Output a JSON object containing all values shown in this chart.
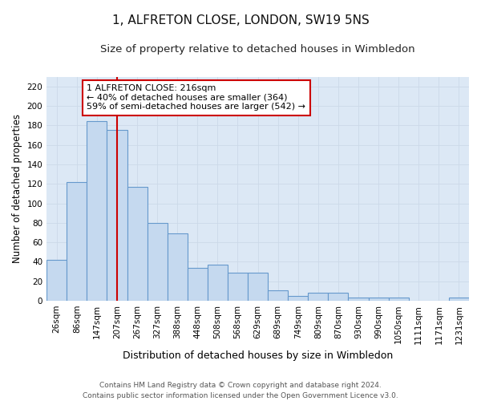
{
  "title": "1, ALFRETON CLOSE, LONDON, SW19 5NS",
  "subtitle": "Size of property relative to detached houses in Wimbledon",
  "xlabel": "Distribution of detached houses by size in Wimbledon",
  "ylabel": "Number of detached properties",
  "bar_labels": [
    "26sqm",
    "86sqm",
    "147sqm",
    "207sqm",
    "267sqm",
    "327sqm",
    "388sqm",
    "448sqm",
    "508sqm",
    "568sqm",
    "629sqm",
    "689sqm",
    "749sqm",
    "809sqm",
    "870sqm",
    "930sqm",
    "990sqm",
    "1050sqm",
    "1111sqm",
    "1171sqm",
    "1231sqm"
  ],
  "bar_values": [
    42,
    122,
    184,
    175,
    117,
    80,
    69,
    34,
    37,
    29,
    29,
    11,
    5,
    8,
    8,
    3,
    3,
    3,
    0,
    0,
    3
  ],
  "bar_color": "#c5d9ef",
  "bar_edge_color": "#6699cc",
  "vline_x": 3.0,
  "vline_color": "#cc0000",
  "annotation_text": "1 ALFRETON CLOSE: 216sqm\n← 40% of detached houses are smaller (364)\n59% of semi-detached houses are larger (542) →",
  "annotation_box_color": "#ffffff",
  "annotation_box_edge": "#cc0000",
  "grid_color": "#ccd9e8",
  "background_color": "#dce8f5",
  "footer_text": "Contains HM Land Registry data © Crown copyright and database right 2024.\nContains public sector information licensed under the Open Government Licence v3.0.",
  "ylim": [
    0,
    230
  ],
  "yticks": [
    0,
    20,
    40,
    60,
    80,
    100,
    120,
    140,
    160,
    180,
    200,
    220
  ],
  "title_fontsize": 11,
  "subtitle_fontsize": 9.5,
  "xlabel_fontsize": 9,
  "ylabel_fontsize": 8.5,
  "tick_fontsize": 7.5,
  "footer_fontsize": 6.5,
  "annotation_fontsize": 8
}
